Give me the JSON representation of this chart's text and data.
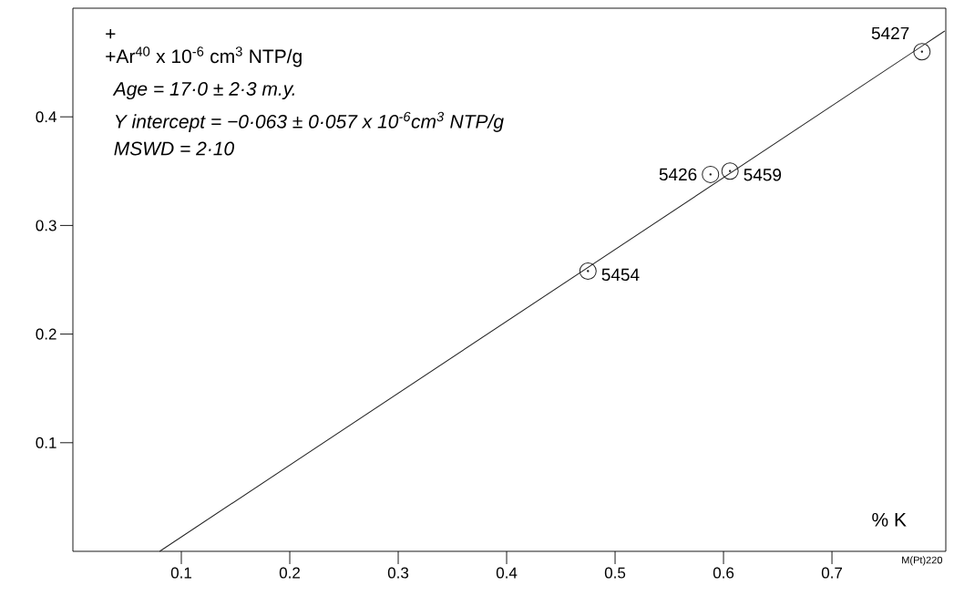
{
  "chart_data": {
    "type": "scatter",
    "xlabel": "% K",
    "ylabel": "+Ar$^{40}$ x 10$^{-6}$ cm$^{3}$ NTP/g",
    "xlim": [
      0,
      0.805
    ],
    "ylim": [
      0,
      0.5
    ],
    "xticks": [
      0.1,
      0.2,
      0.3,
      0.4,
      0.5,
      0.6,
      0.7
    ],
    "yticks": [
      0.1,
      0.2,
      0.3,
      0.4
    ],
    "series": [
      {
        "x": [
          0.475,
          0.588,
          0.606,
          0.783
        ],
        "values": [
          0.258,
          0.347,
          0.35,
          0.46
        ],
        "color": "#222222",
        "marker": "circle"
      },
      {
        "type": "line",
        "x": [
          0.08,
          0.804
        ],
        "values": [
          0,
          0.479
        ],
        "color": "#222222"
      }
    ],
    "annotations": [
      "+",
      "Age = 17·0 ± 2·3 m.y.",
      "Y intercept = −0·063 ± 0·057 x 10$^{-6}$cm$^{3}$ NTP/g",
      "MSWD = 2·10",
      {
        "text": "5454",
        "x": 0.475,
        "y": 0.258
      },
      {
        "text": "5426",
        "x": 0.588,
        "y": 0.347
      },
      {
        "text": "5459",
        "x": 0.606,
        "y": 0.35
      },
      {
        "text": "5427",
        "x": 0.783,
        "y": 0.46
      },
      "M(Pt)220"
    ],
    "grid": false
  }
}
